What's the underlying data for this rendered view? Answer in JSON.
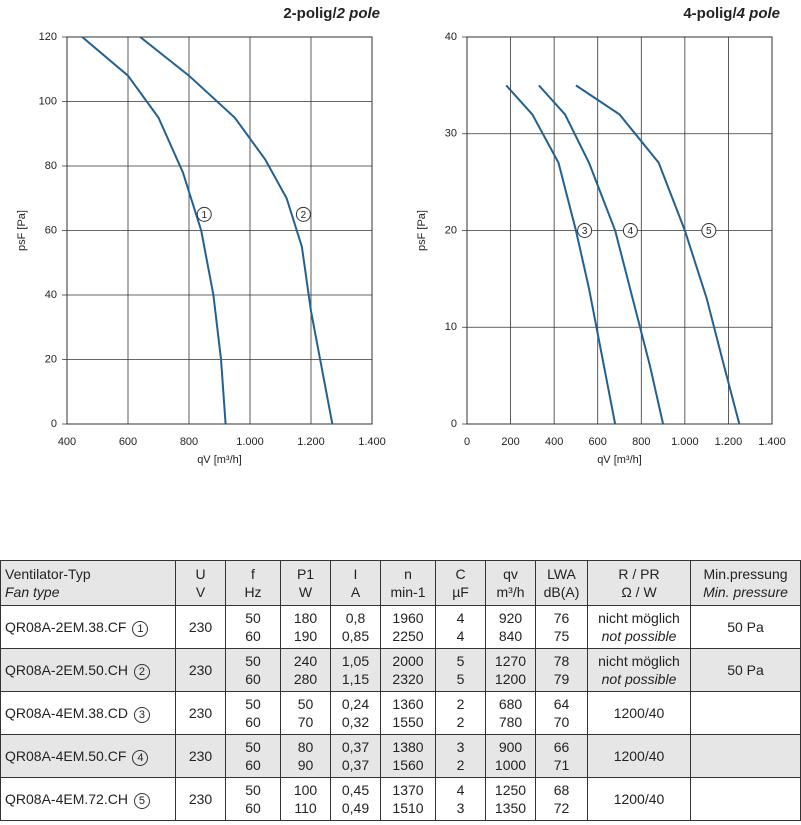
{
  "chart_data": [
    {
      "type": "line",
      "title": "2-polig/",
      "title_italic": "2 pole",
      "xlabel": "qV [m³/h]",
      "ylabel": "psF [Pa]",
      "xlim": [
        400,
        1400
      ],
      "xticks": [
        400,
        600,
        800,
        {
          "value": 1000,
          "label": "1.000"
        },
        {
          "value": 1200,
          "label": "1.200"
        },
        {
          "value": 1400,
          "label": "1.400"
        }
      ],
      "ylim": [
        0,
        120
      ],
      "yticks": [
        0,
        20,
        40,
        60,
        80,
        100,
        120
      ],
      "grid": true,
      "color": "#23608f",
      "series": [
        {
          "name": "1",
          "x": [
            450,
            600,
            700,
            780,
            840,
            880,
            905,
            920
          ],
          "values": [
            120,
            108,
            95,
            78,
            60,
            40,
            20,
            0
          ]
        },
        {
          "name": "2",
          "x": [
            640,
            800,
            950,
            1050,
            1120,
            1170,
            1200,
            1240,
            1270
          ],
          "values": [
            120,
            108,
            95,
            82,
            70,
            55,
            35,
            15,
            0
          ]
        }
      ]
    },
    {
      "type": "line",
      "title": "4-polig/",
      "title_italic": "4 pole",
      "xlabel": "qV [m³/h]",
      "ylabel": "psF [Pa]",
      "xlim": [
        0,
        1400
      ],
      "xticks": [
        0,
        200,
        400,
        600,
        800,
        {
          "value": 1000,
          "label": "1.000"
        },
        {
          "value": 1200,
          "label": "1.200"
        },
        {
          "value": 1400,
          "label": "1.400"
        }
      ],
      "ylim": [
        0,
        40
      ],
      "yticks": [
        0,
        10,
        20,
        30,
        40
      ],
      "grid": true,
      "color": "#23608f",
      "series": [
        {
          "name": "3",
          "x": [
            180,
            300,
            420,
            500,
            560,
            620,
            680
          ],
          "values": [
            35,
            32,
            27,
            20,
            14,
            7,
            0
          ]
        },
        {
          "name": "4",
          "x": [
            330,
            450,
            560,
            680,
            760,
            840,
            900
          ],
          "values": [
            35,
            32,
            27,
            20,
            13,
            6,
            0
          ]
        },
        {
          "name": "5",
          "x": [
            500,
            700,
            880,
            1000,
            1100,
            1180,
            1250
          ],
          "values": [
            35,
            32,
            27,
            20,
            13,
            6,
            0
          ]
        }
      ]
    }
  ],
  "table": {
    "header": [
      [
        "Ventilator-Typ",
        "Fan type"
      ],
      [
        "U",
        "V"
      ],
      [
        "f",
        "Hz"
      ],
      [
        "P1",
        "W"
      ],
      [
        "I",
        "A"
      ],
      [
        "n",
        "min-1"
      ],
      [
        "C",
        "µF"
      ],
      [
        "qv",
        "m³/h"
      ],
      [
        "LWA",
        "dB(A)"
      ],
      [
        "R / PR",
        "Ω / W"
      ],
      [
        "Min.pressung",
        "Min. pressure"
      ]
    ],
    "rows": [
      {
        "type": "QR08A-2EM.38.CF",
        "num": "1",
        "U": "230",
        "f": [
          "50",
          "60"
        ],
        "P": [
          "180",
          "190"
        ],
        "I": [
          "0,8",
          "0,85"
        ],
        "n": [
          "1960",
          "2250"
        ],
        "C": [
          "4",
          "4"
        ],
        "qv": [
          "920",
          "840"
        ],
        "L": [
          "76",
          "75"
        ],
        "R": [
          "nicht möglich",
          "not possible"
        ],
        "min": "50 Pa"
      },
      {
        "type": "QR08A-2EM.50.CH",
        "num": "2",
        "U": "230",
        "f": [
          "50",
          "60"
        ],
        "P": [
          "240",
          "280"
        ],
        "I": [
          "1,05",
          "1,15"
        ],
        "n": [
          "2000",
          "2320"
        ],
        "C": [
          "5",
          "5"
        ],
        "qv": [
          "1270",
          "1200"
        ],
        "L": [
          "78",
          "79"
        ],
        "R": [
          "nicht möglich",
          "not possible"
        ],
        "min": "50 Pa"
      },
      {
        "type": "QR08A-4EM.38.CD",
        "num": "3",
        "U": "230",
        "f": [
          "50",
          "60"
        ],
        "P": [
          "50",
          "70"
        ],
        "I": [
          "0,24",
          "0,32"
        ],
        "n": [
          "1360",
          "1550"
        ],
        "C": [
          "2",
          "2"
        ],
        "qv": [
          "680",
          "780"
        ],
        "L": [
          "64",
          "70"
        ],
        "R": [
          "1200/40"
        ]
      },
      {
        "type": "QR08A-4EM.50.CF",
        "num": "4",
        "U": "230",
        "f": [
          "50",
          "60"
        ],
        "P": [
          "80",
          "90"
        ],
        "I": [
          "0,37",
          "0,37"
        ],
        "n": [
          "1380",
          "1560"
        ],
        "C": [
          "3",
          "2"
        ],
        "qv": [
          "900",
          "1000"
        ],
        "L": [
          "66",
          "71"
        ],
        "R": [
          "1200/40"
        ]
      },
      {
        "type": "QR08A-4EM.72.CH",
        "num": "5",
        "U": "230",
        "f": [
          "50",
          "60"
        ],
        "P": [
          "100",
          "110"
        ],
        "I": [
          "0,45",
          "0,49"
        ],
        "n": [
          "1370",
          "1510"
        ],
        "C": [
          "4",
          "3"
        ],
        "qv": [
          "1250",
          "1350"
        ],
        "L": [
          "68",
          "72"
        ],
        "R": [
          "1200/40"
        ]
      }
    ]
  }
}
